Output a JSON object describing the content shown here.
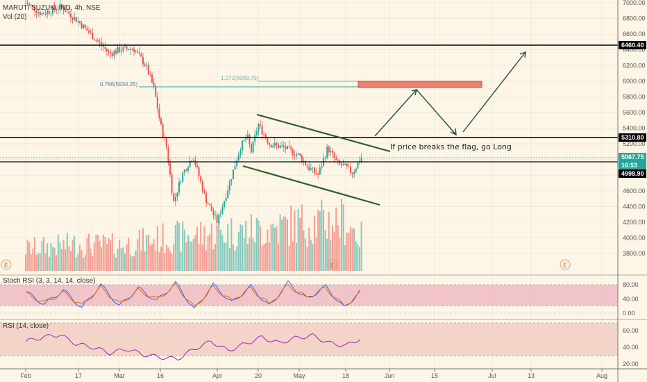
{
  "header": {
    "symbol_line": "MARUTI SUZUKI IND, 4h, NSE",
    "volume_label": "Vol (20)"
  },
  "stoch_panel": {
    "title": "Stoch RSI (3, 3, 14, 14, close)",
    "ticks": [
      "80.00",
      "40.00",
      "0.00"
    ]
  },
  "rsi_panel": {
    "title": "RSI (14, close)",
    "ticks": [
      "60.00",
      "40.00",
      "20.00"
    ]
  },
  "annotation": "If price breaks the flag, go Long",
  "fib": {
    "level_786": "0.786(5934.25)",
    "level_1272": "1.272(6009.70)"
  },
  "price_tags": [
    {
      "label": "6460.40",
      "color": "#000000"
    },
    {
      "label": "5310.80",
      "color": "#000000"
    },
    {
      "label": "5067.75",
      "color": "#26a69a"
    },
    {
      "label": "16:53",
      "color": "#26a69a"
    },
    {
      "label": "4998.90",
      "color": "#000000"
    }
  ],
  "earnings_marker": "E",
  "colors": {
    "background": "#fdf5e6",
    "up": "#26a69a",
    "down": "#ef5350",
    "trendline": "#2e5e2e",
    "stoch_k": "#2962ff",
    "stoch_d": "#ef6c00",
    "rsi": "#9c27b0",
    "target_box": "#f08070"
  },
  "chart_data": [
    {
      "type": "candlestick",
      "title": "MARUTI SUZUKI IND, 4h, NSE",
      "x_ticks": [
        "Feb",
        "17",
        "Mar",
        "16",
        "Apr",
        "20",
        "May",
        "18",
        "Jun",
        "15",
        "Jul",
        "13",
        "Aug"
      ],
      "y_ticks": [
        7000,
        6800,
        6600,
        6400,
        6200,
        6000,
        5800,
        5600,
        5400,
        5200,
        5000,
        4800,
        4600,
        4400,
        4200,
        4000,
        3800
      ],
      "ylim": [
        3650,
        7050
      ],
      "close_path": [
        [
          "Feb",
          7000
        ],
        [
          "Feb 8",
          6860
        ],
        [
          "Feb 14",
          6950
        ],
        [
          "17",
          6760
        ],
        [
          "Feb 22",
          6530
        ],
        [
          "Feb 26",
          6350
        ],
        [
          "Mar",
          6400
        ],
        [
          "Mar 5",
          6420
        ],
        [
          "Mar 10",
          6200
        ],
        [
          "Mar 13",
          5900
        ],
        [
          "16",
          5450
        ],
        [
          "Mar 18",
          5150
        ],
        [
          "Mar 20",
          4450
        ],
        [
          "Mar 23",
          4800
        ],
        [
          "Mar 26",
          5050
        ],
        [
          "Mar 29",
          4500
        ],
        [
          "Apr",
          4200
        ],
        [
          "Apr 3",
          4450
        ],
        [
          "Apr 7",
          4800
        ],
        [
          "Apr 10",
          5150
        ],
        [
          "Apr 14",
          5300
        ],
        [
          "Apr 17",
          5100
        ],
        [
          "20",
          5450
        ],
        [
          "Apr 23",
          5200
        ],
        [
          "Apr 27",
          5150
        ],
        [
          "May",
          5050
        ],
        [
          "May 5",
          4900
        ],
        [
          "May 8",
          4800
        ],
        [
          "May 12",
          5150
        ],
        [
          "May 15",
          4950
        ],
        [
          "18",
          4900
        ],
        [
          "May 20",
          4830
        ],
        [
          "May 22",
          5068
        ]
      ],
      "horizontal_levels": [
        6460.4,
        5310.8,
        4998.9,
        5067.75
      ],
      "fibonacci": [
        {
          "ratio": 0.786,
          "price": 5934.25
        },
        {
          "ratio": 1.272,
          "price": 6009.7
        }
      ],
      "flag_upper_line": [
        [
          "20",
          5590
        ],
        [
          "Jun",
          5250
        ]
      ],
      "flag_lower_line": [
        [
          "Apr 14",
          5030
        ],
        [
          "Jun",
          4570
        ]
      ],
      "target_zone": [
        5935,
        6010
      ],
      "projected_path": [
        [
          "Jun",
          5330
        ],
        [
          "15",
          5930
        ],
        [
          "Jun 22",
          5330
        ],
        [
          "Jul 16",
          6400
        ]
      ],
      "volume": [
        [
          "Feb",
          32
        ],
        [
          "17",
          38
        ],
        [
          "Mar",
          36
        ],
        [
          "16",
          46
        ],
        [
          "Apr",
          54
        ],
        [
          "20",
          58
        ],
        [
          "May",
          68
        ],
        [
          "18",
          72
        ],
        [
          "May 22",
          45
        ]
      ]
    },
    {
      "type": "line",
      "title": "Stoch RSI (3, 3, 14, 14, close)",
      "ylim": [
        -5,
        100
      ],
      "y_ticks": [
        80,
        40,
        0
      ],
      "series": [
        {
          "values": [
            [
              0,
              60
            ],
            [
              0.08,
              25
            ],
            [
              0.16,
              65
            ],
            [
              0.24,
              15
            ],
            [
              0.32,
              80
            ],
            [
              0.4,
              20
            ],
            [
              0.48,
              70
            ],
            [
              0.56,
              35
            ],
            [
              0.64,
              85
            ],
            [
              0.72,
              10
            ],
            [
              0.8,
              80
            ],
            [
              0.88,
              30
            ],
            [
              0.96,
              75
            ],
            [
              1.04,
              20
            ],
            [
              1.12,
              85
            ],
            [
              1.2,
              40
            ],
            [
              1.28,
              75
            ],
            [
              1.36,
              15
            ],
            [
              1.44,
              70
            ]
          ]
        },
        {
          "values": [
            [
              0,
              55
            ],
            [
              0.08,
              30
            ],
            [
              0.16,
              58
            ],
            [
              0.24,
              22
            ],
            [
              0.32,
              72
            ],
            [
              0.4,
              26
            ],
            [
              0.48,
              64
            ],
            [
              0.56,
              40
            ],
            [
              0.64,
              78
            ],
            [
              0.72,
              16
            ],
            [
              0.8,
              74
            ],
            [
              0.88,
              34
            ],
            [
              0.96,
              70
            ],
            [
              1.04,
              25
            ],
            [
              1.12,
              78
            ],
            [
              1.2,
              44
            ],
            [
              1.28,
              70
            ],
            [
              1.36,
              20
            ],
            [
              1.44,
              62
            ]
          ]
        }
      ]
    },
    {
      "type": "line",
      "title": "RSI (14, close)",
      "ylim": [
        15,
        70
      ],
      "y_ticks": [
        60,
        40,
        20
      ],
      "series": [
        {
          "values": [
            [
              0,
              47
            ],
            [
              0.05,
              52
            ],
            [
              0.1,
              55
            ],
            [
              0.15,
              44
            ],
            [
              0.2,
              40
            ],
            [
              0.25,
              33
            ],
            [
              0.3,
              38
            ],
            [
              0.35,
              31
            ],
            [
              0.4,
              28
            ],
            [
              0.45,
              26
            ],
            [
              0.5,
              38
            ],
            [
              0.55,
              47
            ],
            [
              0.6,
              36
            ],
            [
              0.65,
              44
            ],
            [
              0.7,
              52
            ],
            [
              0.75,
              45
            ],
            [
              0.8,
              51
            ],
            [
              0.85,
              54
            ],
            [
              0.9,
              45
            ],
            [
              0.95,
              42
            ],
            [
              1.0,
              52
            ]
          ]
        }
      ]
    }
  ]
}
